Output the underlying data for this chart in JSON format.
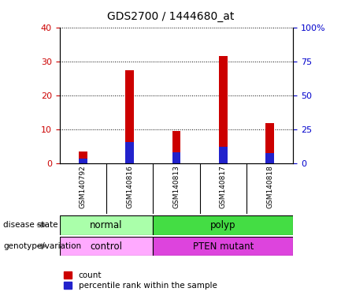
{
  "title": "GDS2700 / 1444680_at",
  "samples": [
    "GSM140792",
    "GSM140816",
    "GSM140813",
    "GSM140817",
    "GSM140818"
  ],
  "count_values": [
    3.5,
    27.5,
    9.5,
    31.5,
    12.0
  ],
  "percentile_values": [
    3.5,
    16.0,
    8.5,
    12.5,
    8.0
  ],
  "ylim_left": [
    0,
    40
  ],
  "ylim_right": [
    0,
    100
  ],
  "yticks_left": [
    0,
    10,
    20,
    30,
    40
  ],
  "yticks_right": [
    0,
    25,
    50,
    75,
    100
  ],
  "ytick_labels_right": [
    "0",
    "25",
    "50",
    "75",
    "100%"
  ],
  "count_color": "#cc0000",
  "percentile_color": "#2222cc",
  "bar_width": 0.18,
  "disease_state_labels": [
    "normal",
    "polyp"
  ],
  "disease_state_color_normal": "#aaffaa",
  "disease_state_color_polyp": "#44dd44",
  "genotype_labels": [
    "control",
    "PTEN mutant"
  ],
  "genotype_color_control": "#ffaaff",
  "genotype_color_pten": "#dd44dd",
  "legend_count_label": "count",
  "legend_percentile_label": "percentile rank within the sample",
  "axis_color_left": "#cc0000",
  "axis_color_right": "#0000cc",
  "background_color": "#ffffff",
  "plot_bg_color": "#ffffff",
  "label_bg_color": "#cccccc",
  "grid_color": "#000000"
}
